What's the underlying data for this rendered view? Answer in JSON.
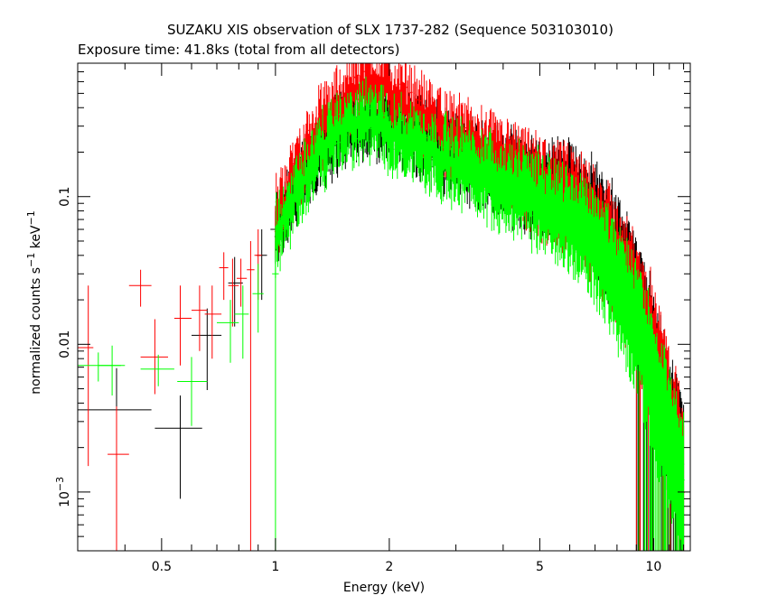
{
  "chart_data": {
    "type": "scatter",
    "title": "SUZAKU XIS observation of SLX 1737-282 (Sequence 503103010)",
    "subtitle": "Exposure time: 41.8ks (total from all detectors)",
    "xlabel": "Energy (keV)",
    "ylabel": "normalized counts s^-1 keV^-1",
    "xscale": "log",
    "yscale": "log",
    "xlim": [
      0.3,
      12.5
    ],
    "ylim": [
      0.0004,
      0.8
    ],
    "grid": false,
    "x_ticks": [
      {
        "value": 0.5,
        "label": "0.5"
      },
      {
        "value": 1,
        "label": "1"
      },
      {
        "value": 2,
        "label": "2"
      },
      {
        "value": 5,
        "label": "5"
      },
      {
        "value": 10,
        "label": "10"
      }
    ],
    "y_ticks": [
      {
        "value": 0.1,
        "label": "0.1"
      },
      {
        "value": 0.01,
        "label": "0.01"
      },
      {
        "value": 0.001,
        "label": "10",
        "sup": "−3"
      }
    ],
    "series": [
      {
        "color": "#000000",
        "points": [
          {
            "x": 0.38,
            "y": 0.0036,
            "xlo": 0.3,
            "xhi": 0.47,
            "ylo": 0.0004,
            "yhi": 0.0069
          },
          {
            "x": 0.56,
            "y": 0.0027,
            "xlo": 0.48,
            "xhi": 0.64,
            "ylo": 0.0009,
            "yhi": 0.0045
          },
          {
            "x": 0.66,
            "y": 0.0115,
            "xlo": 0.6,
            "xhi": 0.72,
            "ylo": 0.0049,
            "yhi": 0.0175
          },
          {
            "x": 0.78,
            "y": 0.026,
            "xlo": 0.75,
            "xhi": 0.82,
            "ylo": 0.0132,
            "yhi": 0.039
          },
          {
            "x": 0.92,
            "y": 0.04,
            "xlo": 0.89,
            "xhi": 0.95,
            "ylo": 0.02,
            "yhi": 0.06
          },
          {
            "x": 1.0,
            "y": 0.06,
            "xlo": 0.97,
            "xhi": 1.03,
            "ylo": 0.035,
            "yhi": 0.085
          }
        ],
        "band": {
          "x": [
            1.0,
            1.1,
            1.2,
            1.3,
            1.4,
            1.5,
            1.7,
            1.9,
            2.1,
            2.4,
            2.8,
            3.2,
            3.6,
            4.0,
            4.6,
            5.2,
            6.0,
            6.6,
            7.2,
            7.8,
            8.4,
            9.0,
            9.6,
            10.2,
            11.0,
            12.0
          ],
          "y": [
            0.06,
            0.1,
            0.15,
            0.2,
            0.25,
            0.28,
            0.32,
            0.34,
            0.3,
            0.26,
            0.21,
            0.18,
            0.16,
            0.14,
            0.12,
            0.11,
            0.1,
            0.085,
            0.065,
            0.045,
            0.03,
            0.018,
            0.011,
            0.006,
            0.003,
            0.0012
          ]
        }
      },
      {
        "color": "#ff0000",
        "points": [
          {
            "x": 0.32,
            "y": 0.0095,
            "xlo": 0.3,
            "xhi": 0.33,
            "ylo": 0.0015,
            "yhi": 0.025
          },
          {
            "x": 0.38,
            "y": 0.0018,
            "xlo": 0.36,
            "xhi": 0.41,
            "ylo": 0.0004,
            "yhi": 0.0038
          },
          {
            "x": 0.44,
            "y": 0.025,
            "xlo": 0.41,
            "xhi": 0.47,
            "ylo": 0.018,
            "yhi": 0.032
          },
          {
            "x": 0.48,
            "y": 0.0082,
            "xlo": 0.44,
            "xhi": 0.52,
            "ylo": 0.0046,
            "yhi": 0.0148
          },
          {
            "x": 0.56,
            "y": 0.015,
            "xlo": 0.54,
            "xhi": 0.6,
            "ylo": 0.0072,
            "yhi": 0.025
          },
          {
            "x": 0.63,
            "y": 0.017,
            "xlo": 0.6,
            "xhi": 0.66,
            "ylo": 0.009,
            "yhi": 0.025
          },
          {
            "x": 0.68,
            "y": 0.016,
            "xlo": 0.65,
            "xhi": 0.72,
            "ylo": 0.008,
            "yhi": 0.025
          },
          {
            "x": 0.73,
            "y": 0.033,
            "xlo": 0.71,
            "xhi": 0.75,
            "ylo": 0.02,
            "yhi": 0.042
          },
          {
            "x": 0.77,
            "y": 0.025,
            "xlo": 0.75,
            "xhi": 0.8,
            "ylo": 0.0132,
            "yhi": 0.038
          },
          {
            "x": 0.81,
            "y": 0.028,
            "xlo": 0.79,
            "xhi": 0.84,
            "ylo": 0.018,
            "yhi": 0.038
          },
          {
            "x": 0.86,
            "y": 0.032,
            "xlo": 0.84,
            "xhi": 0.88,
            "ylo": 0.0004,
            "yhi": 0.05
          },
          {
            "x": 0.9,
            "y": 0.04,
            "xlo": 0.88,
            "xhi": 0.92,
            "ylo": 0.02,
            "yhi": 0.06
          }
        ],
        "band": {
          "x": [
            1.0,
            1.1,
            1.2,
            1.3,
            1.4,
            1.5,
            1.6,
            1.7,
            1.8,
            1.9,
            2.0,
            2.2,
            2.4,
            2.8,
            3.2,
            3.6,
            4.0,
            4.6,
            5.2,
            6.0,
            6.6,
            7.2,
            7.8,
            8.4,
            9.0,
            9.6,
            10.2,
            11.0,
            12.0
          ],
          "y": [
            0.07,
            0.12,
            0.2,
            0.28,
            0.36,
            0.42,
            0.5,
            0.58,
            0.6,
            0.55,
            0.5,
            0.42,
            0.36,
            0.28,
            0.22,
            0.19,
            0.16,
            0.13,
            0.11,
            0.09,
            0.075,
            0.06,
            0.04,
            0.028,
            0.018,
            0.012,
            0.007,
            0.003,
            0.0012
          ]
        }
      },
      {
        "color": "#00ff00",
        "points": [
          {
            "x": 0.34,
            "y": 0.0072,
            "xlo": 0.3,
            "xhi": 0.4,
            "ylo": 0.0056,
            "yhi": 0.0088
          },
          {
            "x": 0.37,
            "y": 0.0072,
            "xlo": 0.34,
            "xhi": 0.39,
            "ylo": 0.0045,
            "yhi": 0.0098
          },
          {
            "x": 0.49,
            "y": 0.0068,
            "xlo": 0.44,
            "xhi": 0.54,
            "ylo": 0.0052,
            "yhi": 0.0085
          },
          {
            "x": 0.6,
            "y": 0.0056,
            "xlo": 0.55,
            "xhi": 0.66,
            "ylo": 0.0028,
            "yhi": 0.0082
          },
          {
            "x": 0.76,
            "y": 0.014,
            "xlo": 0.7,
            "xhi": 0.8,
            "ylo": 0.0075,
            "yhi": 0.02
          },
          {
            "x": 0.82,
            "y": 0.016,
            "xlo": 0.78,
            "xhi": 0.85,
            "ylo": 0.008,
            "yhi": 0.025
          },
          {
            "x": 0.9,
            "y": 0.022,
            "xlo": 0.87,
            "xhi": 0.93,
            "ylo": 0.012,
            "yhi": 0.035
          },
          {
            "x": 1.0,
            "y": 0.03,
            "xlo": 0.98,
            "xhi": 1.02,
            "ylo": 0.0004,
            "yhi": 0.05
          }
        ],
        "band": {
          "x": [
            1.0,
            1.1,
            1.2,
            1.3,
            1.4,
            1.5,
            1.7,
            1.9,
            2.1,
            2.4,
            2.8,
            3.2,
            3.6,
            4.0,
            4.6,
            5.2,
            6.0,
            6.6,
            7.2,
            7.8,
            8.4,
            9.0,
            9.6,
            10.2,
            11.0,
            12.0
          ],
          "y": [
            0.05,
            0.09,
            0.14,
            0.19,
            0.24,
            0.28,
            0.32,
            0.3,
            0.26,
            0.22,
            0.18,
            0.16,
            0.14,
            0.12,
            0.1,
            0.085,
            0.07,
            0.055,
            0.042,
            0.03,
            0.02,
            0.013,
            0.008,
            0.0045,
            0.0022,
            0.001
          ]
        }
      }
    ]
  }
}
